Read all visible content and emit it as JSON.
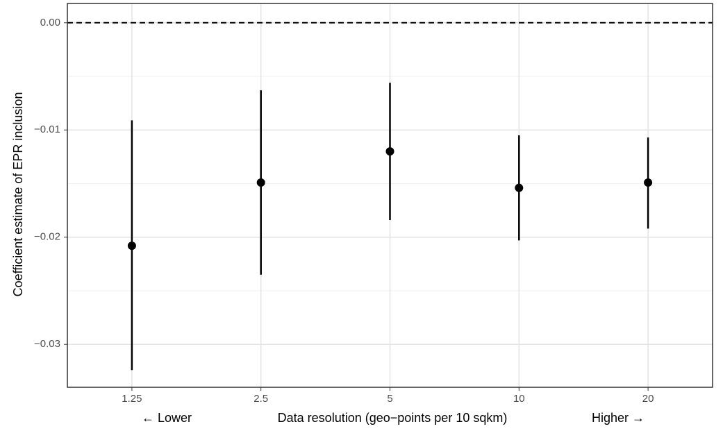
{
  "chart_data": {
    "type": "errorbar",
    "categories": [
      "1.25",
      "2.5",
      "5",
      "10",
      "20"
    ],
    "series": [
      {
        "color": "#000000",
        "values": [
          -0.0208,
          -0.0149,
          -0.012,
          -0.0154,
          -0.0149
        ],
        "lower": [
          -0.0324,
          -0.0235,
          -0.0184,
          -0.0203,
          -0.0192
        ],
        "upper": [
          -0.0091,
          -0.0063,
          -0.0056,
          -0.0105,
          -0.0107
        ]
      }
    ],
    "ylim": [
      -0.034,
      0.0018
    ],
    "yticks": [
      {
        "value": -0.03,
        "label": "−0.03"
      },
      {
        "value": -0.02,
        "label": "−0.02"
      },
      {
        "value": -0.01,
        "label": "−0.01"
      },
      {
        "value": 0,
        "label": "0.00"
      }
    ],
    "hline": 0,
    "grid": true,
    "xlabel": "Data resolution (geo−points per 10 sqkm)",
    "ylabel": "Coefficient estimate of EPR inclusion",
    "annotations": [
      "← Lower",
      "Higher →"
    ]
  }
}
